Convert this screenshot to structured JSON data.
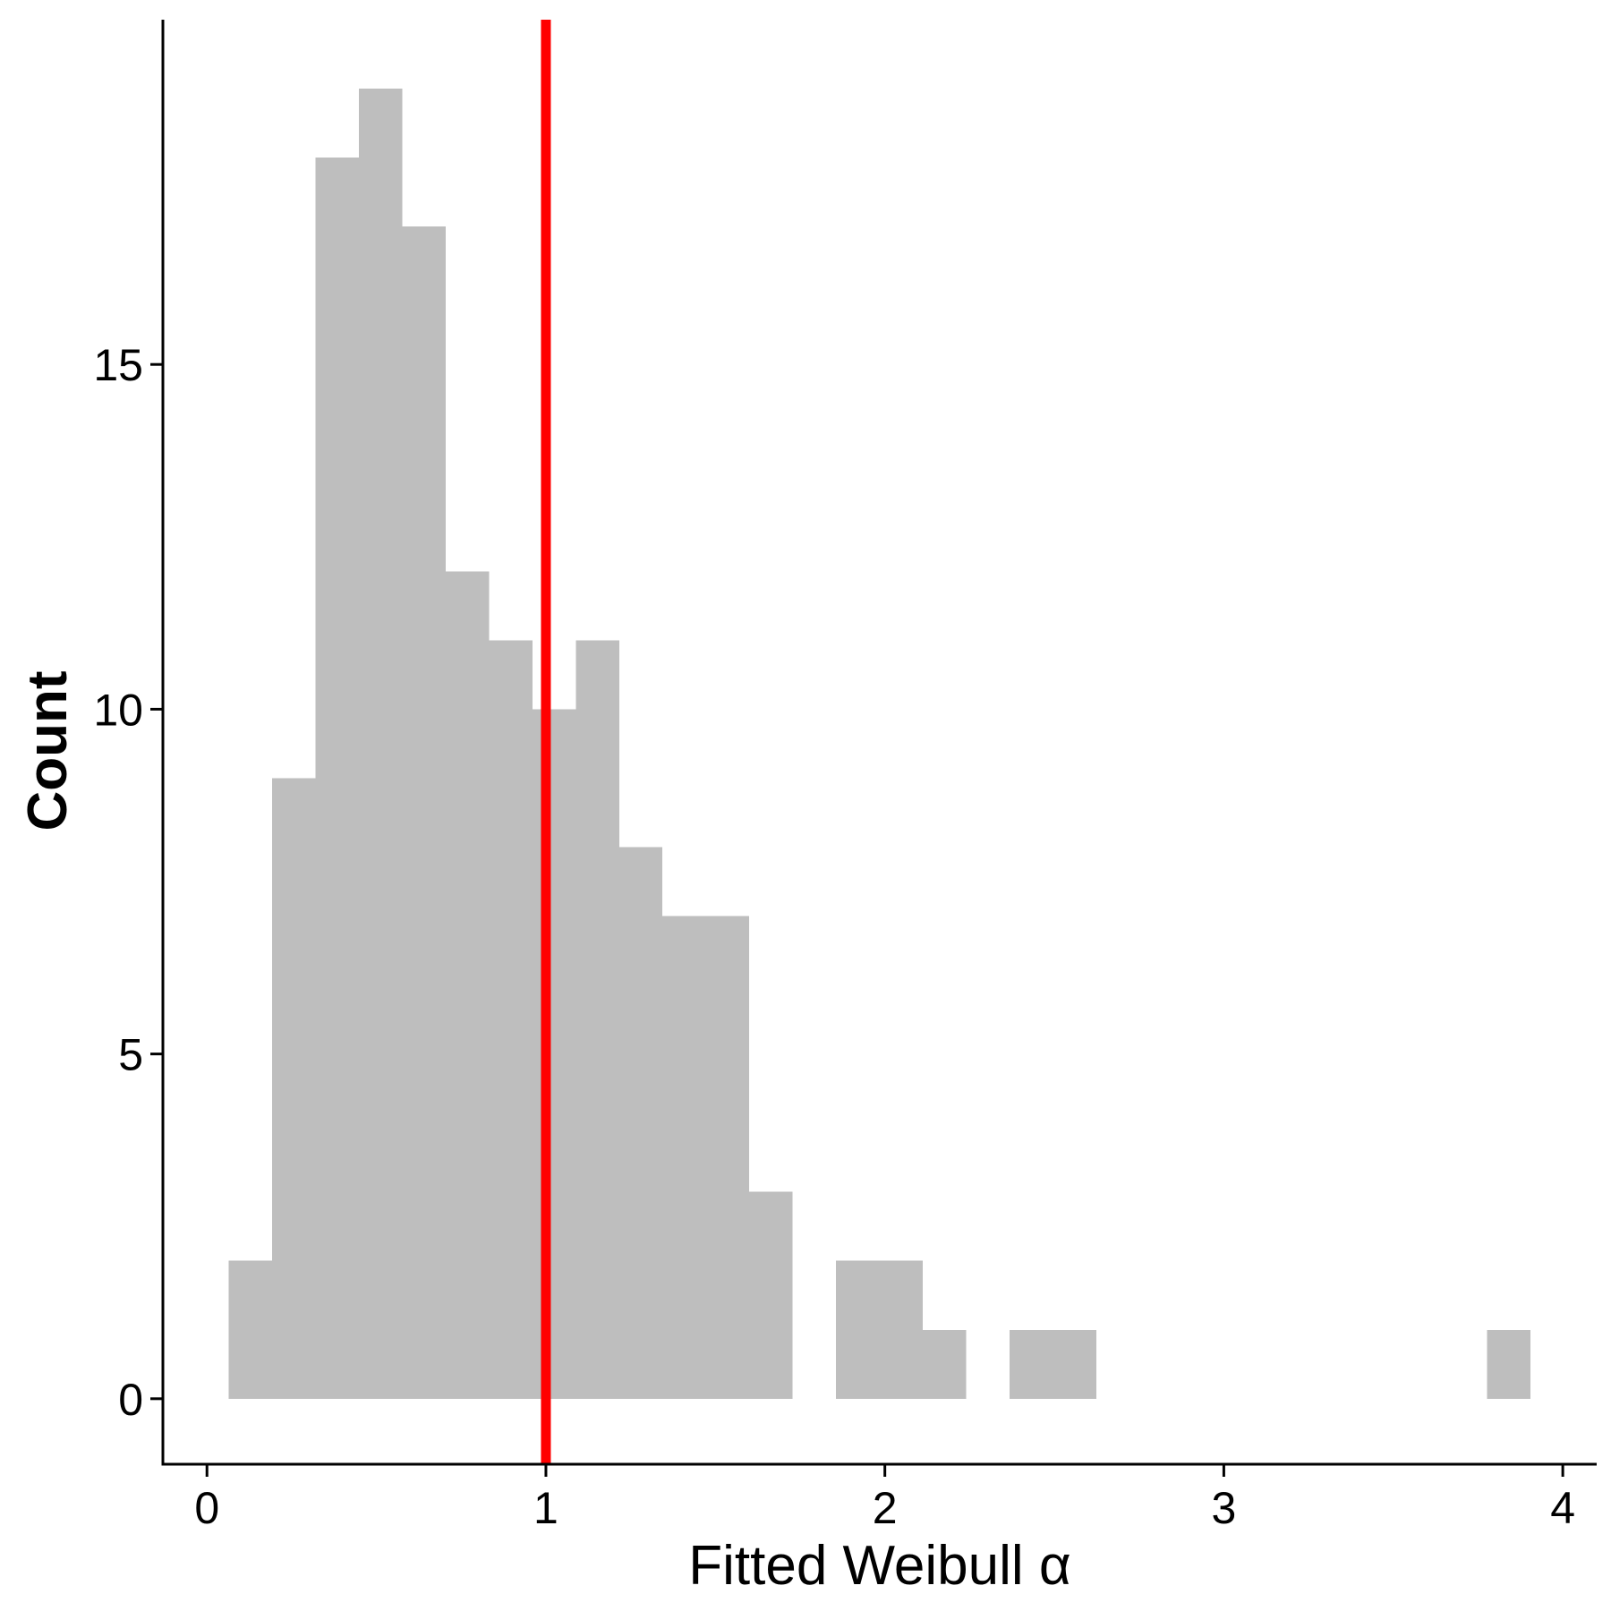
{
  "chart_data": {
    "type": "bar",
    "chart_kind": "histogram",
    "title": "",
    "xlabel": "Fitted Weibull α",
    "ylabel": "Count",
    "xlim": [
      -0.13,
      4.1
    ],
    "ylim": [
      -0.95,
      20.0
    ],
    "x_ticks": [
      {
        "value": 0,
        "label": "0"
      },
      {
        "value": 1,
        "label": "1"
      },
      {
        "value": 2,
        "label": "2"
      },
      {
        "value": 3,
        "label": "3"
      },
      {
        "value": 4,
        "label": "4"
      }
    ],
    "y_ticks": [
      {
        "value": 0,
        "label": "0"
      },
      {
        "value": 5,
        "label": "5"
      },
      {
        "value": 10,
        "label": "10"
      },
      {
        "value": 15,
        "label": "15"
      }
    ],
    "bin_edges": [
      0.064,
      0.192,
      0.32,
      0.448,
      0.576,
      0.704,
      0.832,
      0.96,
      1.088,
      1.216,
      1.344,
      1.472,
      1.6,
      1.728,
      1.856,
      1.984,
      2.112,
      2.24,
      2.368,
      2.496,
      2.624,
      2.752,
      2.88,
      3.008,
      3.136,
      3.264,
      3.392,
      3.52,
      3.648,
      3.776,
      3.904
    ],
    "counts": [
      2,
      9,
      18,
      19,
      17,
      12,
      11,
      10,
      11,
      8,
      7,
      7,
      3,
      0,
      2,
      2,
      1,
      0,
      1,
      1,
      0,
      0,
      0,
      0,
      0,
      0,
      0,
      0,
      0,
      1
    ],
    "bar_color": "#bebebe",
    "reference_line": {
      "x": 1.0,
      "color": "#ff0000"
    },
    "grid": false,
    "legend": "none"
  }
}
